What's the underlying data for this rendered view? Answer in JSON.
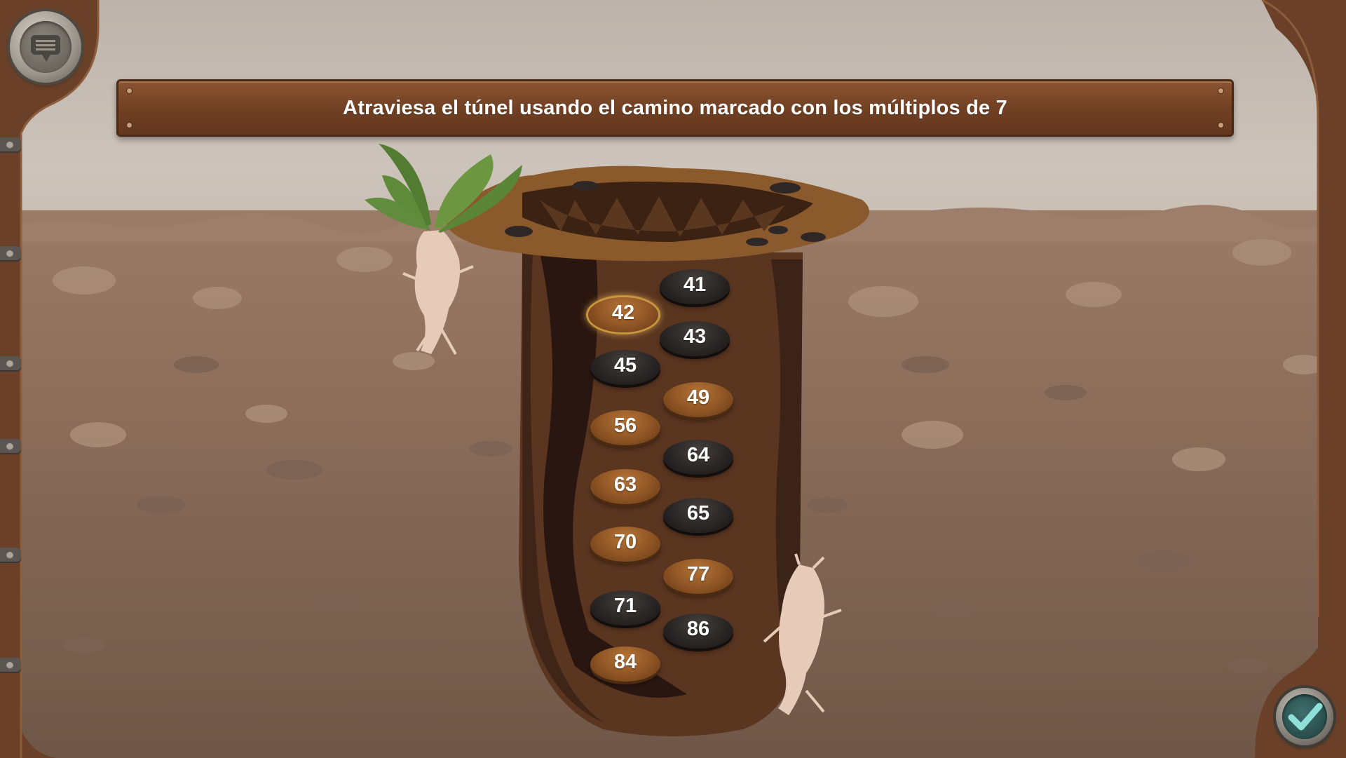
{
  "instruction": "Atraviesa el túnel usando el camino marcado con los múltiplos de 7",
  "colors": {
    "banner": "#6f3f22",
    "stone_dark": "#2a2625",
    "stone_light": "#8e5424",
    "highlight": "#c9963f",
    "frame": "#6a4028"
  },
  "icons": {
    "menu": "chat-bubble-icon",
    "check": "checkmark-icon"
  },
  "stones": [
    {
      "number": "41",
      "type": "dark",
      "selected": false
    },
    {
      "number": "42",
      "type": "light",
      "selected": true
    },
    {
      "number": "43",
      "type": "dark",
      "selected": false
    },
    {
      "number": "45",
      "type": "dark",
      "selected": false
    },
    {
      "number": "49",
      "type": "light",
      "selected": false
    },
    {
      "number": "56",
      "type": "light",
      "selected": false
    },
    {
      "number": "64",
      "type": "dark",
      "selected": false
    },
    {
      "number": "63",
      "type": "light",
      "selected": false
    },
    {
      "number": "65",
      "type": "dark",
      "selected": false
    },
    {
      "number": "70",
      "type": "light",
      "selected": false
    },
    {
      "number": "77",
      "type": "light",
      "selected": false
    },
    {
      "number": "71",
      "type": "dark",
      "selected": false
    },
    {
      "number": "86",
      "type": "dark",
      "selected": false
    },
    {
      "number": "84",
      "type": "light",
      "selected": false
    }
  ]
}
